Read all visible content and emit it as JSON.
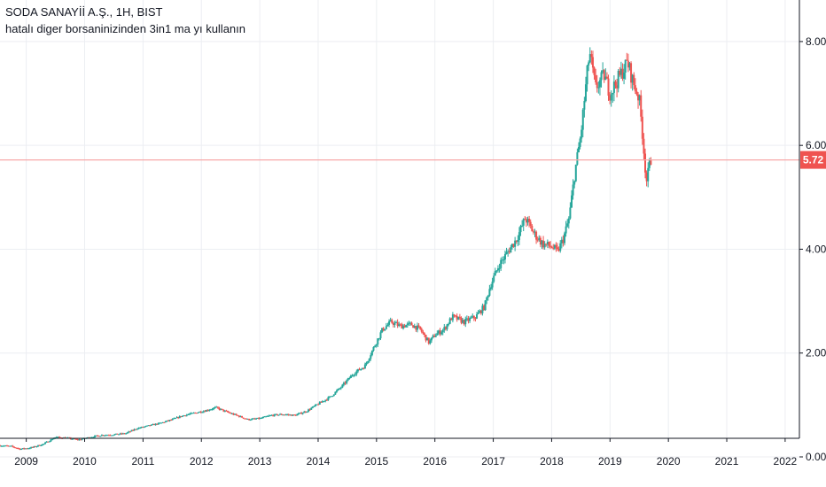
{
  "header": {
    "symbol_title": "SODA SANAYİİ A.Ş., 1H, BIST",
    "note": "hatalı diger borsaninizinden 3in1 ma yı kullanın"
  },
  "colors": {
    "up": "#26a69a",
    "down": "#ef5350",
    "grid": "#eceef2",
    "axis_line": "#131722",
    "price_line": "#f7a8a8",
    "price_badge": "#ef5350"
  },
  "chart_data": {
    "type": "candlestick",
    "title": "SODA SANAYİİ A.Ş., 1H, BIST",
    "subtitle": "hatalı diger borsaninizinden 3in1 ma yı kullanın",
    "x_ticks": [
      "2009",
      "2010",
      "2011",
      "2012",
      "2013",
      "2014",
      "2015",
      "2016",
      "2017",
      "2018",
      "2019",
      "2020",
      "2021",
      "2022"
    ],
    "x_range": [
      2008.55,
      2022.7
    ],
    "y_ticks": [
      "0.00",
      "2.00",
      "4.00",
      "6.00",
      "8.00"
    ],
    "y_range": [
      -0.58,
      8.8
    ],
    "grid": true,
    "last_price": 5.72,
    "last_price_label": "5.72",
    "price_path": [
      [
        2008.55,
        0.22
      ],
      [
        2008.75,
        0.2
      ],
      [
        2008.9,
        0.15
      ],
      [
        2009.1,
        0.18
      ],
      [
        2009.3,
        0.25
      ],
      [
        2009.5,
        0.38
      ],
      [
        2009.7,
        0.36
      ],
      [
        2009.9,
        0.33
      ],
      [
        2010.1,
        0.38
      ],
      [
        2010.3,
        0.42
      ],
      [
        2010.5,
        0.43
      ],
      [
        2010.7,
        0.45
      ],
      [
        2010.9,
        0.55
      ],
      [
        2011.1,
        0.6
      ],
      [
        2011.3,
        0.65
      ],
      [
        2011.5,
        0.72
      ],
      [
        2011.7,
        0.8
      ],
      [
        2011.9,
        0.85
      ],
      [
        2012.1,
        0.9
      ],
      [
        2012.25,
        0.95
      ],
      [
        2012.4,
        0.88
      ],
      [
        2012.6,
        0.8
      ],
      [
        2012.8,
        0.72
      ],
      [
        2013.0,
        0.74
      ],
      [
        2013.2,
        0.8
      ],
      [
        2013.4,
        0.82
      ],
      [
        2013.6,
        0.8
      ],
      [
        2013.8,
        0.88
      ],
      [
        2014.0,
        1.02
      ],
      [
        2014.2,
        1.15
      ],
      [
        2014.4,
        1.35
      ],
      [
        2014.6,
        1.6
      ],
      [
        2014.8,
        1.75
      ],
      [
        2014.95,
        2.1
      ],
      [
        2015.1,
        2.45
      ],
      [
        2015.25,
        2.6
      ],
      [
        2015.4,
        2.52
      ],
      [
        2015.6,
        2.55
      ],
      [
        2015.75,
        2.45
      ],
      [
        2015.9,
        2.2
      ],
      [
        2016.0,
        2.35
      ],
      [
        2016.15,
        2.45
      ],
      [
        2016.3,
        2.7
      ],
      [
        2016.5,
        2.6
      ],
      [
        2016.7,
        2.7
      ],
      [
        2016.85,
        2.9
      ],
      [
        2016.95,
        3.3
      ],
      [
        2017.1,
        3.7
      ],
      [
        2017.25,
        3.95
      ],
      [
        2017.4,
        4.2
      ],
      [
        2017.55,
        4.6
      ],
      [
        2017.7,
        4.3
      ],
      [
        2017.85,
        4.1
      ],
      [
        2018.0,
        4.05
      ],
      [
        2018.1,
        3.95
      ],
      [
        2018.2,
        4.2
      ],
      [
        2018.3,
        4.6
      ],
      [
        2018.4,
        5.5
      ],
      [
        2018.5,
        6.2
      ],
      [
        2018.6,
        7.3
      ],
      [
        2018.65,
        7.8
      ],
      [
        2018.75,
        7.1
      ],
      [
        2018.9,
        7.35
      ],
      [
        2019.0,
        7.0
      ],
      [
        2019.1,
        7.2
      ],
      [
        2019.2,
        7.4
      ],
      [
        2019.3,
        7.6
      ],
      [
        2019.4,
        7.2
      ],
      [
        2019.5,
        6.9
      ],
      [
        2019.55,
        6.3
      ],
      [
        2019.6,
        5.6
      ],
      [
        2019.63,
        5.3
      ],
      [
        2019.67,
        5.6
      ],
      [
        2019.7,
        5.72
      ]
    ]
  }
}
